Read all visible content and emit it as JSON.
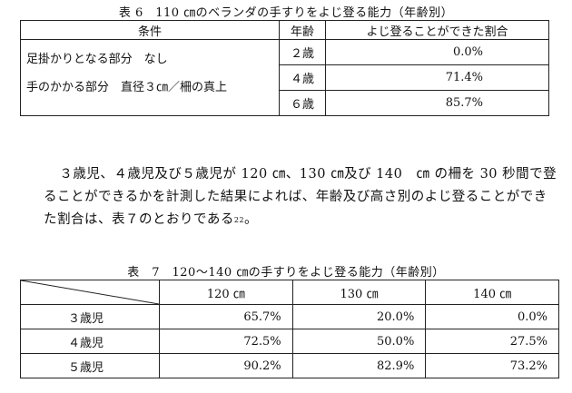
{
  "table6": {
    "caption": "表 6　110 ㎝のベランダの手すりをよじ登る能力（年齢別）",
    "headers": [
      "条件",
      "年齢",
      "よじ登ることができた割合"
    ],
    "condition_line1": "足掛かりとなる部分　なし",
    "condition_line2": "手のかかる部分　直径３㎝／柵の真上",
    "rows": [
      {
        "age": "２歳",
        "rate": "0.0%"
      },
      {
        "age": "４歳",
        "rate": "71.4%"
      },
      {
        "age": "６歳",
        "rate": "85.7%"
      }
    ]
  },
  "paragraph": {
    "text": "３歳児、４歳児及び５歳児が 120 ㎝、130 ㎝及び 140　㎝ の柵を 30 秒間で登ることができるかを計測した結果によれば、年齢及び高さ別のよじ登ることができた割合は、表７のとおりである",
    "footnote": "22",
    "end": "。"
  },
  "table7": {
    "caption": "表　7　120～140 ㎝の手すりをよじ登る能力（年齢別）",
    "headers": [
      "120 ㎝",
      "130 ㎝",
      "140 ㎝"
    ],
    "rows": [
      {
        "label": "３歳児",
        "values": [
          "65.7%",
          "20.0%",
          "0.0%"
        ]
      },
      {
        "label": "４歳児",
        "values": [
          "72.5%",
          "50.0%",
          "27.5%"
        ]
      },
      {
        "label": "５歳児",
        "values": [
          "90.2%",
          "82.9%",
          "73.2%"
        ]
      }
    ]
  }
}
